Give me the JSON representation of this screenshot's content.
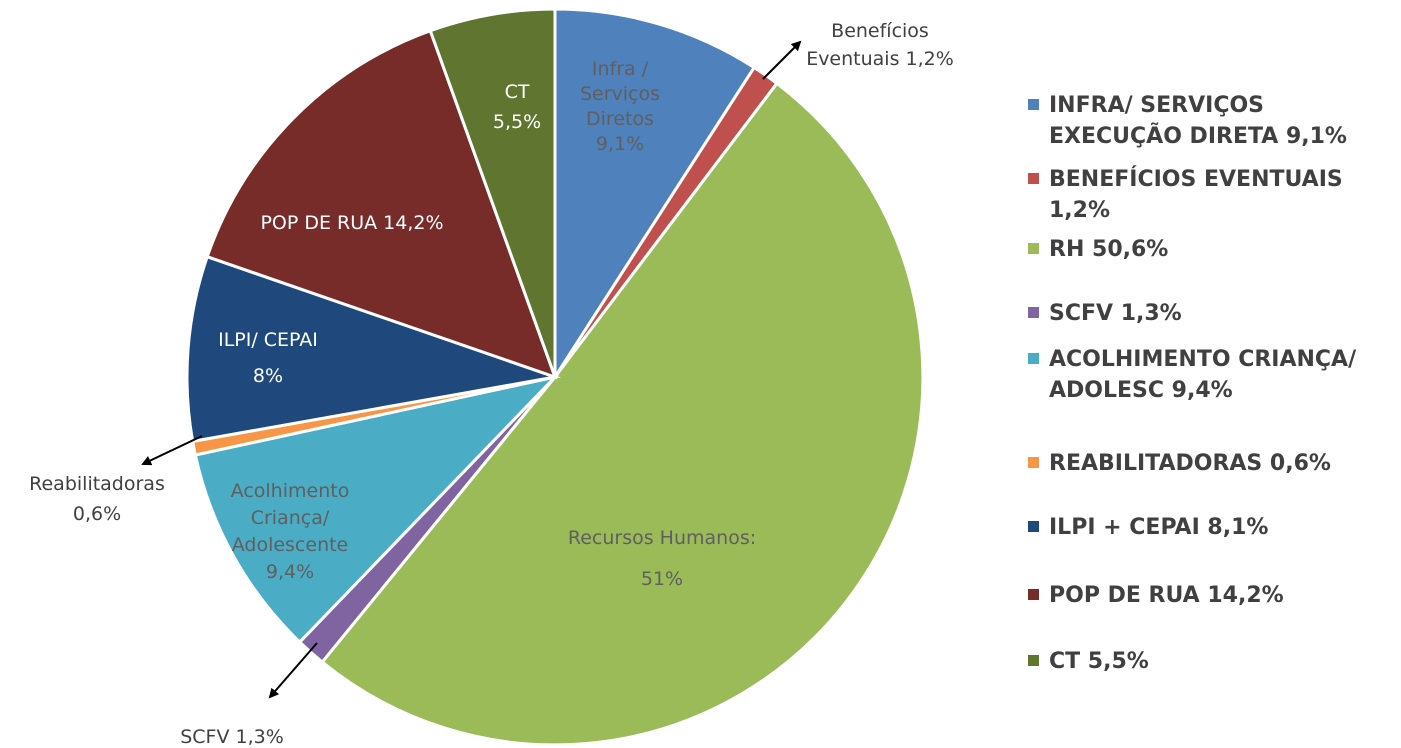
{
  "chart_data": {
    "type": "pie",
    "slices": [
      {
        "key": "infra",
        "label_lines": [
          "Infra /",
          "Serviços",
          "Diretos",
          "9,1%"
        ],
        "value": 9.1,
        "color": "#4f81bd",
        "label_color": "#5f5f5f"
      },
      {
        "key": "beneficios",
        "label_lines": [
          "Benefícios",
          "Eventuais 1,2%"
        ],
        "value": 1.2,
        "color": "#c0504d",
        "label_color": "#404040"
      },
      {
        "key": "rh",
        "label_lines": [
          "Recursos Humanos:",
          "51%"
        ],
        "value": 50.6,
        "color": "#9bbb59",
        "label_color": "#5f5f5f"
      },
      {
        "key": "scfv",
        "label_lines": [
          "SCFV 1,3%"
        ],
        "value": 1.3,
        "color": "#8064a2",
        "label_color": "#404040"
      },
      {
        "key": "acolhimento",
        "label_lines": [
          "Acolhimento",
          "Criança/",
          "Adolescente",
          "9,4%"
        ],
        "value": 9.4,
        "color": "#4bacc6",
        "label_color": "#5f5f5f"
      },
      {
        "key": "reabilitadoras",
        "label_lines": [
          "Reabilitadoras",
          "0,6%"
        ],
        "value": 0.6,
        "color": "#f79646",
        "label_color": "#404040"
      },
      {
        "key": "ilpi",
        "label_lines": [
          "ILPI/ CEPAI",
          "8%"
        ],
        "value": 8.1,
        "color": "#1f497d",
        "label_color": "#ffffff"
      },
      {
        "key": "pop",
        "label_lines": [
          "POP DE RUA 14,2%"
        ],
        "value": 14.2,
        "color": "#772c2a",
        "label_color": "#ffffff"
      },
      {
        "key": "ct",
        "label_lines": [
          "CT",
          "5,5%"
        ],
        "value": 5.5,
        "color": "#5f7530",
        "label_color": "#ffffff"
      }
    ],
    "legend": [
      {
        "text": "INFRA/ SERVIÇOS EXECUÇÃO DIRETA 9,1%",
        "color": "#4f81bd"
      },
      {
        "text": "BENEFÍCIOS EVENTUAIS 1,2%",
        "color": "#c0504d"
      },
      {
        "text": "RH 50,6%",
        "color": "#9bbb59"
      },
      {
        "text": "SCFV 1,3%",
        "color": "#8064a2"
      },
      {
        "text": "ACOLHIMENTO CRIANÇA/ ADOLESC  9,4%",
        "color": "#4bacc6"
      },
      {
        "text": "REABILITADORAS 0,6%",
        "color": "#f79646"
      },
      {
        "text": "ILPI + CEPAI  8,1%",
        "color": "#1f497d"
      },
      {
        "text": "POP DE RUA  14,2%",
        "color": "#772c2a"
      },
      {
        "text": "CT 5,5%",
        "color": "#5f7530"
      }
    ],
    "legend_position": "right"
  }
}
